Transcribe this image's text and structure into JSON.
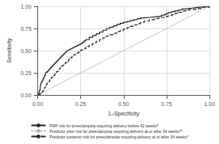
{
  "chart_data": {
    "type": "line",
    "xlabel": "1–Specificity",
    "ylabel": "Sensitivity",
    "xlim": [
      0.0,
      1.0
    ],
    "ylim": [
      0.0,
      1.0
    ],
    "xticks": [
      {
        "value": 0.0,
        "label": "0.00"
      },
      {
        "value": 0.25,
        "label": "0.25"
      },
      {
        "value": 0.5,
        "label": "0.50"
      },
      {
        "value": 0.75,
        "label": "0.75"
      },
      {
        "value": 1.0,
        "label": "1.00"
      }
    ],
    "yticks": [
      {
        "value": 0.0,
        "label": "0.00"
      },
      {
        "value": 0.25,
        "label": "0.25"
      },
      {
        "value": 0.5,
        "label": "0.50"
      },
      {
        "value": 0.75,
        "label": "0.75"
      },
      {
        "value": 1.0,
        "label": "1.00"
      }
    ],
    "grid": true,
    "legend": "bottom",
    "series": [
      {
        "name": "FMF risk for preeclampsia requiring delivery before 42 weeks*",
        "type": "step",
        "color": "#222222",
        "line_style": "solid",
        "x": [
          0.0,
          0.005,
          0.01,
          0.015,
          0.018,
          0.02,
          0.025,
          0.03,
          0.035,
          0.04,
          0.045,
          0.048,
          0.055,
          0.06,
          0.065,
          0.07,
          0.075,
          0.08,
          0.085,
          0.09,
          0.095,
          0.1,
          0.105,
          0.11,
          0.115,
          0.12,
          0.125,
          0.13,
          0.135,
          0.14,
          0.145,
          0.15,
          0.155,
          0.16,
          0.165,
          0.17,
          0.18,
          0.19,
          0.2,
          0.21,
          0.22,
          0.23,
          0.24,
          0.25,
          0.26,
          0.27,
          0.28,
          0.3,
          0.32,
          0.34,
          0.36,
          0.38,
          0.4,
          0.42,
          0.44,
          0.46,
          0.48,
          0.5,
          0.52,
          0.54,
          0.56,
          0.58,
          0.6,
          0.62,
          0.65,
          0.68,
          0.7,
          0.72,
          0.74,
          0.75,
          0.76,
          0.78,
          0.8,
          0.82,
          0.84,
          0.86,
          0.88,
          0.9,
          0.92,
          0.94,
          0.96,
          0.97,
          0.975,
          0.98,
          1.0
        ],
        "values": [
          0.0,
          0.02,
          0.055,
          0.09,
          0.12,
          0.14,
          0.16,
          0.18,
          0.2,
          0.22,
          0.24,
          0.255,
          0.265,
          0.275,
          0.285,
          0.3,
          0.31,
          0.32,
          0.33,
          0.34,
          0.35,
          0.36,
          0.37,
          0.38,
          0.39,
          0.4,
          0.41,
          0.42,
          0.43,
          0.44,
          0.45,
          0.46,
          0.47,
          0.48,
          0.49,
          0.5,
          0.51,
          0.52,
          0.53,
          0.54,
          0.55,
          0.56,
          0.57,
          0.58,
          0.595,
          0.61,
          0.625,
          0.65,
          0.67,
          0.69,
          0.71,
          0.73,
          0.75,
          0.765,
          0.78,
          0.795,
          0.81,
          0.82,
          0.83,
          0.84,
          0.85,
          0.86,
          0.87,
          0.875,
          0.88,
          0.885,
          0.89,
          0.9,
          0.91,
          0.92,
          0.93,
          0.94,
          0.95,
          0.96,
          0.97,
          0.975,
          0.98,
          0.985,
          0.99,
          0.993,
          0.997,
          0.998,
          0.999,
          1.0,
          1.0
        ]
      },
      {
        "name": "Predictor prior risk for preeclampsia requiring delivery at or after 34 weeks**",
        "type": "line",
        "color": "#aaaaaa",
        "line_style": "dotted",
        "x": [
          0.0,
          1.0
        ],
        "values": [
          0.0,
          1.0
        ]
      },
      {
        "name": "Predictor posterior risk for preeclampsia requiring delivery at or after 34 weeks*",
        "type": "step",
        "color": "#222222",
        "line_style": "dashed",
        "x": [
          0.0,
          0.005,
          0.01,
          0.015,
          0.02,
          0.025,
          0.03,
          0.035,
          0.04,
          0.045,
          0.05,
          0.055,
          0.06,
          0.07,
          0.08,
          0.09,
          0.1,
          0.11,
          0.12,
          0.13,
          0.14,
          0.15,
          0.16,
          0.17,
          0.18,
          0.19,
          0.2,
          0.21,
          0.22,
          0.23,
          0.24,
          0.25,
          0.26,
          0.28,
          0.3,
          0.32,
          0.34,
          0.36,
          0.38,
          0.4,
          0.42,
          0.44,
          0.46,
          0.48,
          0.5,
          0.52,
          0.54,
          0.56,
          0.58,
          0.6,
          0.62,
          0.65,
          0.68,
          0.7,
          0.72,
          0.74,
          0.76,
          0.78,
          0.8,
          0.82,
          0.85,
          0.88,
          0.92,
          0.96,
          1.0
        ],
        "values": [
          0.0,
          0.005,
          0.01,
          0.015,
          0.025,
          0.035,
          0.05,
          0.065,
          0.085,
          0.105,
          0.12,
          0.135,
          0.15,
          0.175,
          0.2,
          0.22,
          0.24,
          0.265,
          0.29,
          0.31,
          0.33,
          0.35,
          0.365,
          0.38,
          0.4,
          0.42,
          0.44,
          0.455,
          0.465,
          0.475,
          0.49,
          0.505,
          0.52,
          0.545,
          0.565,
          0.585,
          0.605,
          0.625,
          0.645,
          0.665,
          0.68,
          0.695,
          0.715,
          0.73,
          0.745,
          0.76,
          0.775,
          0.79,
          0.805,
          0.82,
          0.835,
          0.85,
          0.86,
          0.868,
          0.875,
          0.885,
          0.895,
          0.905,
          0.92,
          0.935,
          0.95,
          0.965,
          0.975,
          0.99,
          1.0
        ]
      }
    ]
  }
}
